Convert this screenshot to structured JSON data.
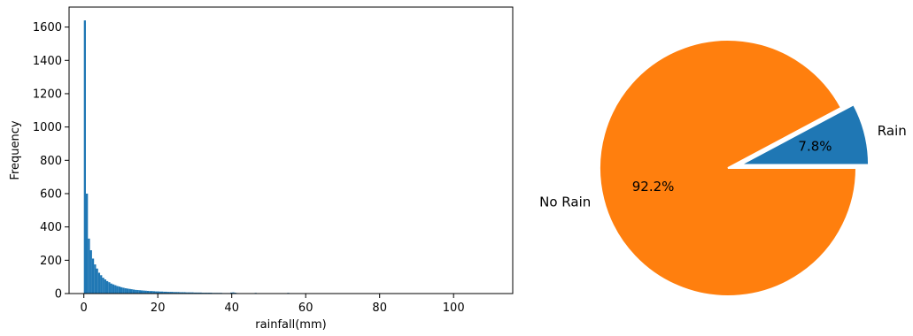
{
  "chart_data": [
    {
      "type": "bar",
      "subtype": "histogram",
      "title": "",
      "xlabel": "rainfall(mm)",
      "ylabel": "Frequency",
      "xlim": [
        -4,
        116
      ],
      "ylim": [
        0,
        1720
      ],
      "xticks": [
        0,
        20,
        40,
        60,
        80,
        100
      ],
      "yticks": [
        0,
        200,
        400,
        600,
        800,
        1000,
        1200,
        1400,
        1600
      ],
      "bin_width": 0.55,
      "bars": [
        {
          "x": 0.0,
          "y": 1640
        },
        {
          "x": 0.55,
          "y": 600
        },
        {
          "x": 1.1,
          "y": 330
        },
        {
          "x": 1.65,
          "y": 260
        },
        {
          "x": 2.2,
          "y": 210
        },
        {
          "x": 2.75,
          "y": 175
        },
        {
          "x": 3.3,
          "y": 150
        },
        {
          "x": 3.85,
          "y": 125
        },
        {
          "x": 4.4,
          "y": 110
        },
        {
          "x": 4.95,
          "y": 95
        },
        {
          "x": 5.5,
          "y": 85
        },
        {
          "x": 6.05,
          "y": 75
        },
        {
          "x": 6.6,
          "y": 68
        },
        {
          "x": 7.15,
          "y": 60
        },
        {
          "x": 7.7,
          "y": 55
        },
        {
          "x": 8.25,
          "y": 50
        },
        {
          "x": 8.8,
          "y": 45
        },
        {
          "x": 9.35,
          "y": 42
        },
        {
          "x": 9.9,
          "y": 38
        },
        {
          "x": 10.45,
          "y": 35
        },
        {
          "x": 11.0,
          "y": 32
        },
        {
          "x": 11.55,
          "y": 30
        },
        {
          "x": 12.1,
          "y": 28
        },
        {
          "x": 12.65,
          "y": 26
        },
        {
          "x": 13.2,
          "y": 24
        },
        {
          "x": 13.75,
          "y": 22
        },
        {
          "x": 14.3,
          "y": 21
        },
        {
          "x": 14.85,
          "y": 20
        },
        {
          "x": 15.4,
          "y": 19
        },
        {
          "x": 15.95,
          "y": 18
        },
        {
          "x": 16.5,
          "y": 17
        },
        {
          "x": 17.05,
          "y": 16
        },
        {
          "x": 17.6,
          "y": 15
        },
        {
          "x": 18.15,
          "y": 15
        },
        {
          "x": 18.7,
          "y": 14
        },
        {
          "x": 19.25,
          "y": 13
        },
        {
          "x": 19.8,
          "y": 13
        },
        {
          "x": 20.35,
          "y": 12
        },
        {
          "x": 20.9,
          "y": 12
        },
        {
          "x": 21.45,
          "y": 11
        },
        {
          "x": 22.0,
          "y": 11
        },
        {
          "x": 22.55,
          "y": 10
        },
        {
          "x": 23.1,
          "y": 10
        },
        {
          "x": 23.65,
          "y": 10
        },
        {
          "x": 24.2,
          "y": 9
        },
        {
          "x": 24.75,
          "y": 9
        },
        {
          "x": 25.3,
          "y": 9
        },
        {
          "x": 25.85,
          "y": 8
        },
        {
          "x": 26.4,
          "y": 8
        },
        {
          "x": 26.95,
          "y": 8
        },
        {
          "x": 27.5,
          "y": 7
        },
        {
          "x": 28.05,
          "y": 7
        },
        {
          "x": 28.6,
          "y": 7
        },
        {
          "x": 29.15,
          "y": 7
        },
        {
          "x": 29.7,
          "y": 6
        },
        {
          "x": 30.25,
          "y": 6
        },
        {
          "x": 30.8,
          "y": 6
        },
        {
          "x": 31.35,
          "y": 6
        },
        {
          "x": 31.9,
          "y": 5
        },
        {
          "x": 32.45,
          "y": 5
        },
        {
          "x": 33.0,
          "y": 5
        },
        {
          "x": 33.55,
          "y": 5
        },
        {
          "x": 34.1,
          "y": 5
        },
        {
          "x": 34.65,
          "y": 4
        },
        {
          "x": 35.2,
          "y": 4
        },
        {
          "x": 35.75,
          "y": 4
        },
        {
          "x": 36.3,
          "y": 4
        },
        {
          "x": 36.85,
          "y": 4
        },
        {
          "x": 37.4,
          "y": 3
        },
        {
          "x": 37.95,
          "y": 3
        },
        {
          "x": 38.5,
          "y": 3
        },
        {
          "x": 39.05,
          "y": 3
        },
        {
          "x": 39.6,
          "y": 6
        },
        {
          "x": 40.15,
          "y": 7
        },
        {
          "x": 40.7,
          "y": 5
        },
        {
          "x": 41.25,
          "y": 3
        },
        {
          "x": 41.8,
          "y": 2
        },
        {
          "x": 42.35,
          "y": 2
        },
        {
          "x": 42.9,
          "y": 2
        },
        {
          "x": 43.45,
          "y": 2
        },
        {
          "x": 44.0,
          "y": 2
        },
        {
          "x": 45.1,
          "y": 2
        },
        {
          "x": 46.2,
          "y": 4
        },
        {
          "x": 47.3,
          "y": 1
        },
        {
          "x": 48.4,
          "y": 1
        },
        {
          "x": 49.5,
          "y": 1
        },
        {
          "x": 50.6,
          "y": 1
        },
        {
          "x": 51.7,
          "y": 1
        },
        {
          "x": 53.9,
          "y": 1
        },
        {
          "x": 55.0,
          "y": 4
        },
        {
          "x": 57.2,
          "y": 1
        },
        {
          "x": 60.5,
          "y": 1
        },
        {
          "x": 64.9,
          "y": 1
        },
        {
          "x": 70.4,
          "y": 1
        },
        {
          "x": 77.0,
          "y": 1
        },
        {
          "x": 85.8,
          "y": 1
        },
        {
          "x": 96.8,
          "y": 1
        },
        {
          "x": 110.0,
          "y": 1
        }
      ],
      "color": "#1f77b4"
    },
    {
      "type": "pie",
      "title": "",
      "slices": [
        {
          "label": "Rain",
          "value": 7.8,
          "pct_label": "7.8%",
          "color": "#1f77b4",
          "explode": 0.1
        },
        {
          "label": "No Rain",
          "value": 92.2,
          "pct_label": "92.2%",
          "color": "#ff7f0e",
          "explode": 0
        }
      ],
      "start_angle_deg": 0,
      "edge_color": "#ffffff"
    }
  ]
}
